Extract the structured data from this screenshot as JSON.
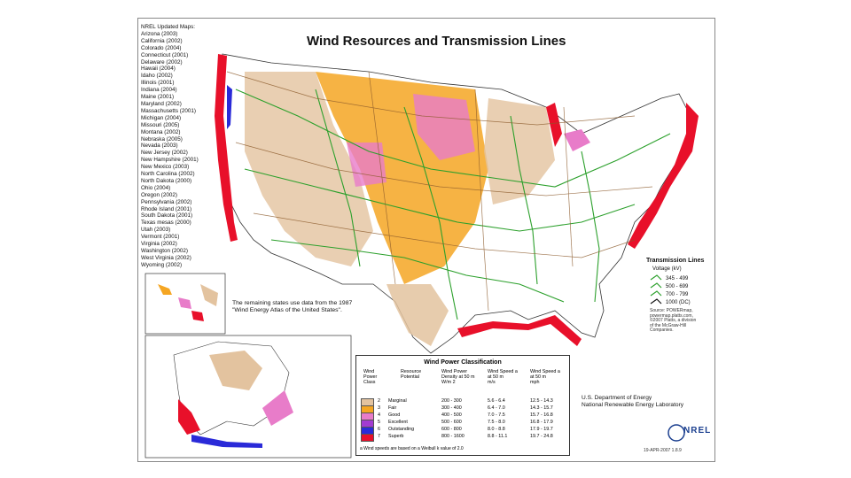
{
  "title": "Wind Resources and Transmission Lines",
  "updated_maps": {
    "heading": "NREL Updated Maps:",
    "states": [
      "Arizona (2003)",
      "California (2002)",
      "Colorado (2004)",
      "Connecticut (2001)",
      "Delaware (2002)",
      "Hawaii (2004)",
      "Idaho (2002)",
      "Illinois (2001)",
      "Indiana (2004)",
      "Maine (2001)",
      "Maryland (2002)",
      "Massachusetts (2001)",
      "Michigan (2004)",
      "Missouri (2005)",
      "Montana (2002)",
      "Nebraska (2005)",
      "Nevada (2003)",
      "New Jersey (2002)",
      "New Hampshire (2001)",
      "New Mexico (2003)",
      "North Carolina (2002)",
      "North Dakota (2000)",
      "Ohio (2004)",
      "Oregon (2002)",
      "Pennsylvania (2002)",
      "Rhode Island (2001)",
      "South Dakota (2001)",
      "Texas mesas (2000)",
      "Utah (2003)",
      "Vermont (2001)",
      "Virginia (2002)",
      "Washington (2002)",
      "West Virginia (2002)",
      "Wyoming (2002)"
    ]
  },
  "remaining_note": [
    "The remaining states use data from the 1987",
    "\"Wind Energy Atlas of the United States\"."
  ],
  "transmission": {
    "title": "Transmission Lines",
    "voltage_label": "Voltage (kV)",
    "rows": [
      {
        "label": "345 - 499",
        "color": "#2ca02c"
      },
      {
        "label": "500 - 699",
        "color": "#2ca02c"
      },
      {
        "label": "700 - 799",
        "color": "#2ca02c"
      },
      {
        "label": "1000 (DC)",
        "color": "#2ca02c"
      }
    ],
    "source": [
      "Source: POWERmap,",
      "powermap.platts.com,",
      "©2007 Platts, a division",
      "of the McGraw-Hill",
      "Companies."
    ]
  },
  "wind_power_classification": {
    "title": "Wind Power Classification",
    "headers": {
      "class": [
        "Wind",
        "Power",
        "Class"
      ],
      "potential": [
        "Resource",
        "Potential"
      ],
      "density": [
        "Wind Power",
        "Density at 50 m",
        "W/m 2"
      ],
      "speed_ms": [
        "Wind Speed a",
        "at 50 m",
        "m/s"
      ],
      "speed_mph": [
        "Wind Speed a",
        "at 50 m",
        "mph"
      ]
    },
    "rows": [
      {
        "class": "2",
        "potential": "Marginal",
        "density": "200 - 300",
        "ms": "5.6 - 6.4",
        "mph": "12.5 - 14.3",
        "color": "#e3c39f"
      },
      {
        "class": "3",
        "potential": "Fair",
        "density": "300 - 400",
        "ms": "6.4 - 7.0",
        "mph": "14.3 - 15.7",
        "color": "#f5a623"
      },
      {
        "class": "4",
        "potential": "Good",
        "density": "400 - 500",
        "ms": "7.0 - 7.5",
        "mph": "15.7 - 16.8",
        "color": "#e87cc9"
      },
      {
        "class": "5",
        "potential": "Excellent",
        "density": "500 - 600",
        "ms": "7.5 - 8.0",
        "mph": "16.8 - 17.9",
        "color": "#a23bd1"
      },
      {
        "class": "6",
        "potential": "Outstanding",
        "density": "600 - 800",
        "ms": "8.0 - 8.8",
        "mph": "17.9 - 19.7",
        "color": "#2a2ad8"
      },
      {
        "class": "7",
        "potential": "Superb",
        "density": "800 - 1600",
        "ms": "8.8 - 11.1",
        "mph": "19.7 - 24.8",
        "color": "#e8102a"
      }
    ],
    "footnote": "a Wind speeds are based on a Weibull k value of 2.0"
  },
  "agency": [
    "U.S. Department of Energy",
    "National Renewable Energy Laboratory"
  ],
  "logo_text": "NREL",
  "date": "19-APR-2007 1.8.9",
  "colors": {
    "marginal": "#e3c39f",
    "fair": "#f5a623",
    "good": "#e87cc9",
    "excellent": "#a23bd1",
    "outstanding": "#2a2ad8",
    "superb": "#e8102a",
    "transmission": "#2ca02c",
    "roads": "#8b5a2b"
  }
}
